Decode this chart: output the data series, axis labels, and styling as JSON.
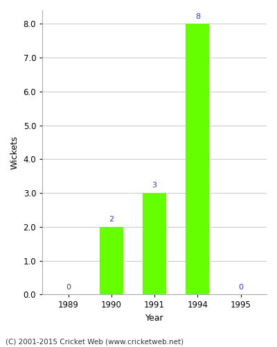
{
  "years": [
    "1989",
    "1990",
    "1991",
    "1994",
    "1995"
  ],
  "wickets": [
    0,
    2,
    3,
    8,
    0
  ],
  "bar_color": "#66ff00",
  "bar_edge_color": "#66ff00",
  "label_color": "#3333cc",
  "label_fontsize": 8,
  "xlabel": "Year",
  "ylabel": "Wickets",
  "ylim": [
    0.0,
    8.4
  ],
  "yticks": [
    0.0,
    1.0,
    2.0,
    3.0,
    4.0,
    5.0,
    6.0,
    7.0,
    8.0
  ],
  "grid_color": "#cccccc",
  "background_color": "#ffffff",
  "footer_text": "(C) 2001-2015 Cricket Web (www.cricketweb.net)",
  "footer_fontsize": 7.5,
  "footer_color": "#333333",
  "bar_width": 0.55,
  "tick_label_fontsize": 8.5,
  "axis_label_fontsize": 9
}
